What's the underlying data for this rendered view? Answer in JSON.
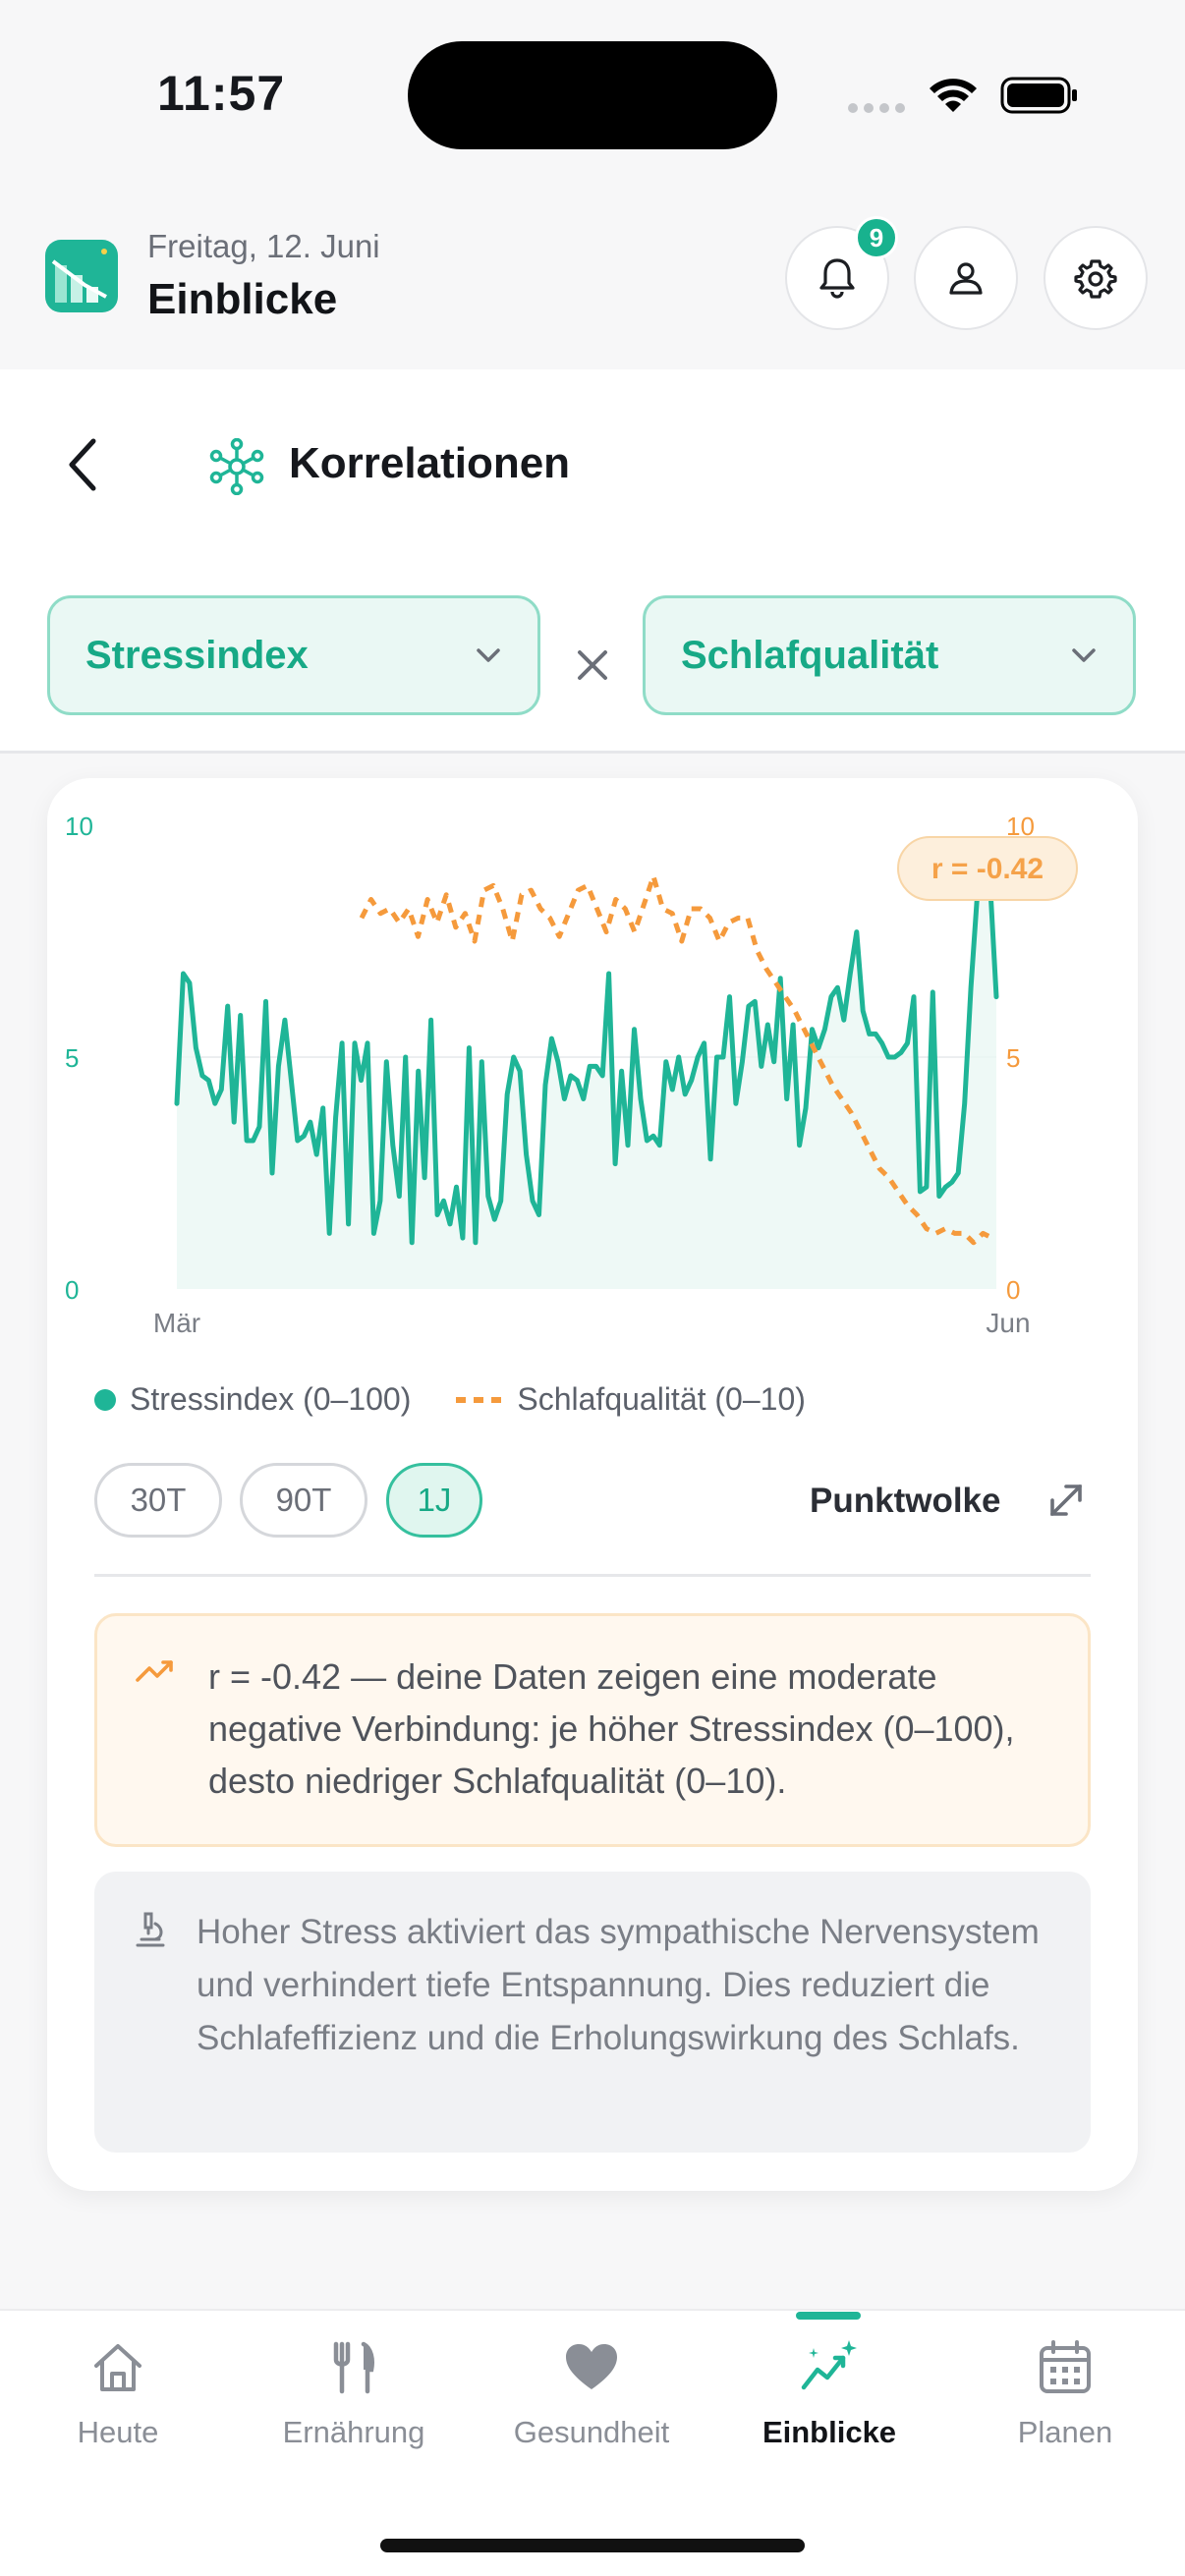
{
  "status_bar": {
    "time": "11:57"
  },
  "header": {
    "date": "Freitag, 12. Juni",
    "title": "Einblicke",
    "notification_count": "9",
    "icons": [
      "bell-icon",
      "user-icon",
      "gear-icon"
    ]
  },
  "page": {
    "title": "Korrelationen",
    "selector_a": "Stressindex",
    "selector_b": "Schlafqualität"
  },
  "chart_data": {
    "type": "line",
    "x_start": "Mär",
    "x_end": "Jun",
    "y_left_ticks": [
      "10",
      "5",
      "0"
    ],
    "y_right_ticks": [
      "10",
      "5",
      "0"
    ],
    "ylim": [
      0,
      10
    ],
    "correlation_badge": "r = -0.42",
    "grid": "horizontal at 5",
    "legend_placement": "below",
    "series": [
      {
        "name": "Stressindex (0–100)",
        "axis": "left",
        "color": "#1fb597",
        "style": "solid with area fill",
        "values": [
          4.0,
          6.8,
          6.6,
          5.2,
          4.6,
          4.5,
          4.0,
          4.3,
          6.1,
          3.6,
          5.9,
          3.2,
          3.2,
          3.5,
          6.2,
          2.5,
          4.8,
          5.8,
          4.5,
          3.2,
          3.3,
          3.6,
          2.9,
          3.9,
          1.2,
          3.7,
          5.3,
          1.4,
          5.3,
          4.5,
          5.3,
          1.2,
          1.9,
          4.9,
          3.1,
          2.0,
          5.0,
          1.0,
          4.7,
          2.4,
          5.8,
          1.6,
          1.9,
          1.4,
          2.2,
          1.1,
          5.2,
          1.0,
          4.9,
          2.0,
          1.5,
          1.9,
          4.2,
          5.0,
          4.7,
          2.9,
          1.9,
          1.6,
          4.4,
          5.4,
          4.9,
          4.1,
          4.6,
          4.5,
          4.1,
          4.8,
          4.8,
          4.6,
          6.8,
          2.7,
          4.7,
          3.1,
          5.6,
          4.1,
          3.2,
          3.3,
          3.1,
          4.9,
          4.3,
          5.0,
          4.2,
          4.5,
          5.0,
          5.3,
          2.8,
          5.0,
          5.0,
          6.3,
          4.0,
          4.9,
          6.1,
          6.2,
          4.8,
          5.7,
          4.9,
          6.7,
          4.1,
          5.7,
          3.1,
          3.9,
          5.6,
          5.2,
          5.6,
          6.3,
          6.5,
          5.8,
          6.8,
          7.7,
          6.0,
          5.5,
          5.5,
          5.3,
          5.0,
          5.0,
          5.1,
          5.3,
          6.3,
          2.1,
          2.2,
          6.4,
          2.0,
          2.2,
          2.3,
          2.5,
          4.0,
          6.5,
          8.5,
          9.0,
          8.8,
          6.3
        ]
      },
      {
        "name": "Schlafqualität (0–10)",
        "axis": "right",
        "color": "#f59a3c",
        "style": "dashed",
        "values": [
          8.0,
          8.4,
          8.1,
          8.2,
          7.9,
          8.2,
          7.6,
          8.4,
          7.9,
          8.5,
          7.8,
          8.1,
          7.5,
          8.6,
          8.7,
          8.2,
          7.5,
          8.5,
          8.6,
          8.2,
          8.0,
          7.6,
          8.1,
          8.6,
          8.7,
          8.2,
          7.7,
          8.4,
          8.2,
          7.7,
          8.3,
          8.9,
          8.2,
          8.1,
          7.5,
          8.2,
          8.2,
          8.0,
          7.5,
          7.9,
          8.0,
          8.0,
          7.3,
          6.9,
          6.6,
          6.3,
          6.0,
          5.6,
          5.2,
          4.8,
          4.4,
          4.1,
          3.8,
          3.4,
          3.0,
          2.6,
          2.4,
          2.1,
          1.8,
          1.6,
          1.3,
          1.2,
          1.3,
          1.2,
          1.2,
          1.0,
          1.2,
          1.1
        ]
      }
    ]
  },
  "legend": {
    "stress": "Stressindex (0–100)",
    "sleep": "Schlafqualität (0–10)"
  },
  "range_pills": [
    "30T",
    "90T",
    "1J"
  ],
  "range_selected": "1J",
  "scatter_label": "Punktwolke",
  "insight_text": "r = -0.42 — deine Daten zeigen eine moderate negative Verbindung: je höher Stressindex (0–100), desto niedriger Schlafqualität (0–10).",
  "science_text": "Hoher Stress aktiviert das sympathische Nervensystem und verhindert tiefe Entspannung. Dies reduziert die Schlafeffizienz und die Erholungswirkung des Schlafs.",
  "nav": {
    "items": [
      {
        "label": "Heute",
        "icon": "home-icon"
      },
      {
        "label": "Ernährung",
        "icon": "fork-knife-icon"
      },
      {
        "label": "Gesundheit",
        "icon": "heart-icon"
      },
      {
        "label": "Einblicke",
        "icon": "sparkle-chart-icon",
        "active": true
      },
      {
        "label": "Planen",
        "icon": "calendar-icon"
      }
    ]
  },
  "colors": {
    "accent": "#1fb597",
    "secondary": "#f59a3c"
  }
}
